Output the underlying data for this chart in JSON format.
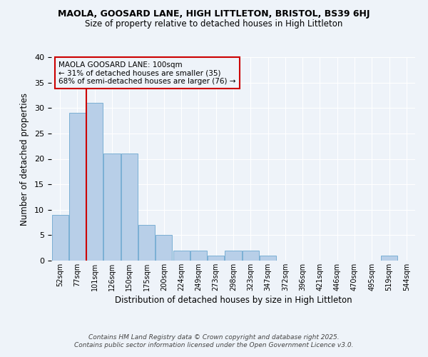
{
  "title": "MAOLA, GOOSARD LANE, HIGH LITTLETON, BRISTOL, BS39 6HJ",
  "subtitle": "Size of property relative to detached houses in High Littleton",
  "xlabel": "Distribution of detached houses by size in High Littleton",
  "ylabel": "Number of detached properties",
  "bar_color": "#b8cfe8",
  "bar_edge_color": "#7aafd4",
  "vline_color": "#cc0000",
  "vline_x": 1.525,
  "categories": [
    "52sqm",
    "77sqm",
    "101sqm",
    "126sqm",
    "150sqm",
    "175sqm",
    "200sqm",
    "224sqm",
    "249sqm",
    "273sqm",
    "298sqm",
    "323sqm",
    "347sqm",
    "372sqm",
    "396sqm",
    "421sqm",
    "446sqm",
    "470sqm",
    "495sqm",
    "519sqm",
    "544sqm"
  ],
  "values": [
    9,
    29,
    31,
    21,
    21,
    7,
    5,
    2,
    2,
    1,
    2,
    2,
    1,
    0,
    0,
    0,
    0,
    0,
    0,
    1,
    0
  ],
  "annotation_text": "MAOLA GOOSARD LANE: 100sqm\n← 31% of detached houses are smaller (35)\n68% of semi-detached houses are larger (76) →",
  "footer_text": "Contains HM Land Registry data © Crown copyright and database right 2025.\nContains public sector information licensed under the Open Government Licence v3.0.",
  "bg_color": "#eef3f9",
  "grid_color": "#ffffff",
  "ylim": [
    0,
    40
  ],
  "yticks": [
    0,
    5,
    10,
    15,
    20,
    25,
    30,
    35,
    40
  ]
}
